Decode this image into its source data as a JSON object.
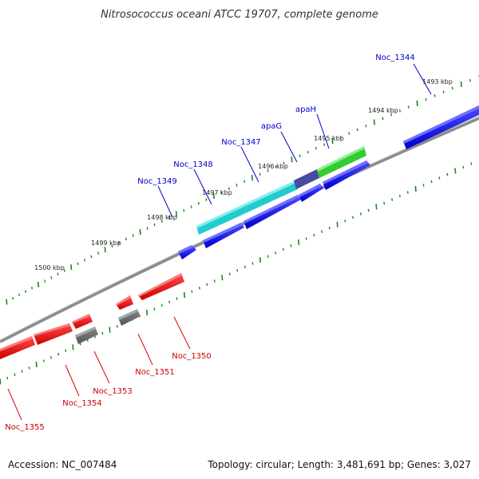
{
  "title": "Nitrosococcus oceani ATCC 19707, complete genome",
  "footer": {
    "accession": "Accession: NC_007484",
    "summary": "Topology: circular; Length: 3,481,691 bp; Genes: 3,027"
  },
  "kbp_labels": [
    "1493 kbp",
    "1494 kbp",
    "1495 kbp",
    "1496 kbp",
    "1497 kbp",
    "1498 kbp",
    "1499 kbp",
    "1500 kbp"
  ],
  "gene_labels": {
    "forward": [
      "Noc_1344",
      "apaH",
      "apaG",
      "Noc_1347",
      "Noc_1348",
      "Noc_1349"
    ],
    "reverse": [
      "Noc_1350",
      "Noc_1351",
      "Noc_1353",
      "Noc_1354",
      "Noc_1355"
    ]
  },
  "colors": {
    "forward": "#0000ee",
    "reverse": "#ee0000",
    "highlight_cyan": "#22cccc",
    "highlight_purple": "#4a4aa0",
    "highlight_green": "#33cc33",
    "other": "#666666",
    "backbone": "#8c8c8c",
    "ticks": "#1a8a1a"
  }
}
